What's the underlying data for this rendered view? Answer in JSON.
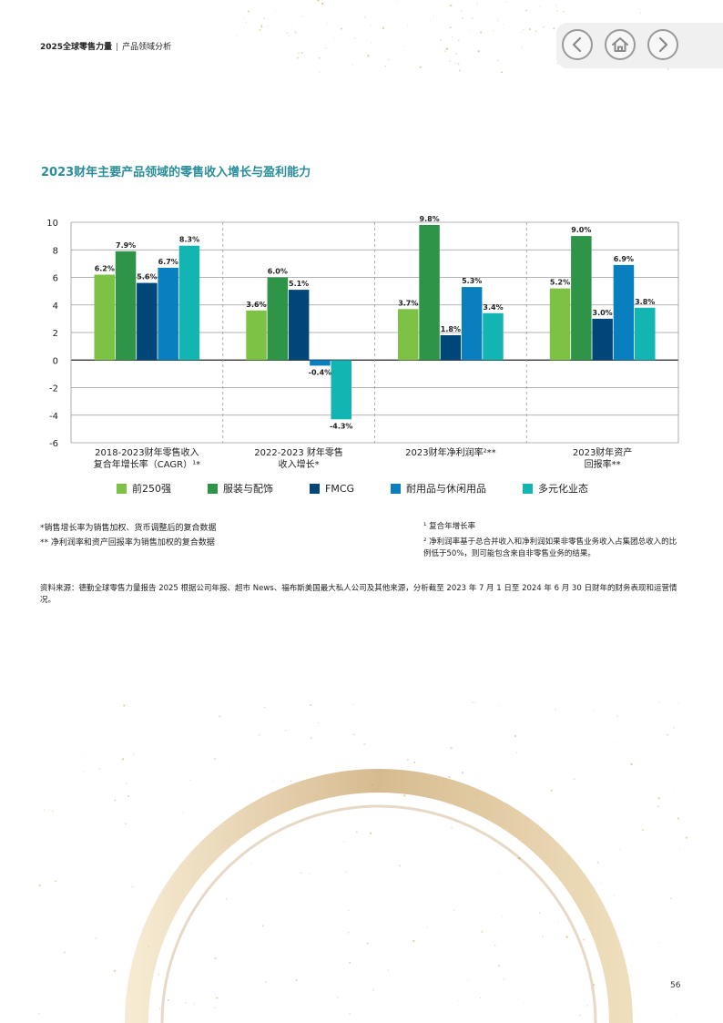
{
  "header": {
    "report_title": "2025全球零售力量",
    "section": "产品领域分析"
  },
  "nav": {
    "prev_icon": "chevron-left-icon",
    "home_icon": "home-icon",
    "next_icon": "chevron-right-icon"
  },
  "colors": {
    "top250": "#7dc244",
    "apparel": "#2d9448",
    "fmcg": "#004679",
    "durables": "#0a7fc0",
    "diversified": "#12b5b1",
    "title": "#2a8d9a",
    "gold": "#c9a46a"
  },
  "chart_data": {
    "type": "bar",
    "title": "2023财年主要产品领域的零售收入增长与盈利能力",
    "categories": [
      [
        "2018-2023财年零售收入",
        "复合年增长率（CAGR）¹*"
      ],
      [
        "2022-2023 财年零售",
        "收入增长*"
      ],
      [
        "2023财年净利润率²**"
      ],
      [
        "2023财年资产",
        "回报率**"
      ]
    ],
    "series": [
      {
        "name": "前250强",
        "color": "#7dc244",
        "values": [
          6.2,
          3.6,
          3.7,
          5.2
        ]
      },
      {
        "name": "服装与配饰",
        "color": "#2d9448",
        "values": [
          7.9,
          6.0,
          9.8,
          9.0
        ]
      },
      {
        "name": "FMCG",
        "color": "#004679",
        "values": [
          5.6,
          5.1,
          1.8,
          3.0
        ]
      },
      {
        "name": "耐用品与休闲用品",
        "color": "#0a7fc0",
        "values": [
          6.7,
          -0.4,
          5.3,
          6.9
        ]
      },
      {
        "name": "多元化业态",
        "color": "#12b5b1",
        "values": [
          8.3,
          -4.3,
          3.4,
          3.8
        ]
      }
    ],
    "y_ticks": [
      10,
      8,
      6,
      4,
      2,
      0,
      -2,
      -4,
      -6
    ],
    "ylim": [
      -6,
      10
    ],
    "value_suffix": "%",
    "grid": true,
    "legend_position": "bottom"
  },
  "notes_left": [
    "*销售增长率为销售加权、货币调整后的复合数据",
    "** 净利润率和资产回报率为销售加权的复合数据"
  ],
  "notes_right": [
    "¹ 复合年增长率",
    "² 净利润率基于总合并收入和净利润如果非零售业务收入占集团总收入的比例低于50%，则可能包含来自非零售业务的结果。"
  ],
  "source": "资料来源：德勤全球零售力量报告 2025 根据公司年报、超市 News、福布斯美国最大私人公司及其他来源，分析截至 2023 年 7 月 1 日至 2024 年 6 月 30 日财年的财务表现和运营情况。",
  "page_number": "56"
}
